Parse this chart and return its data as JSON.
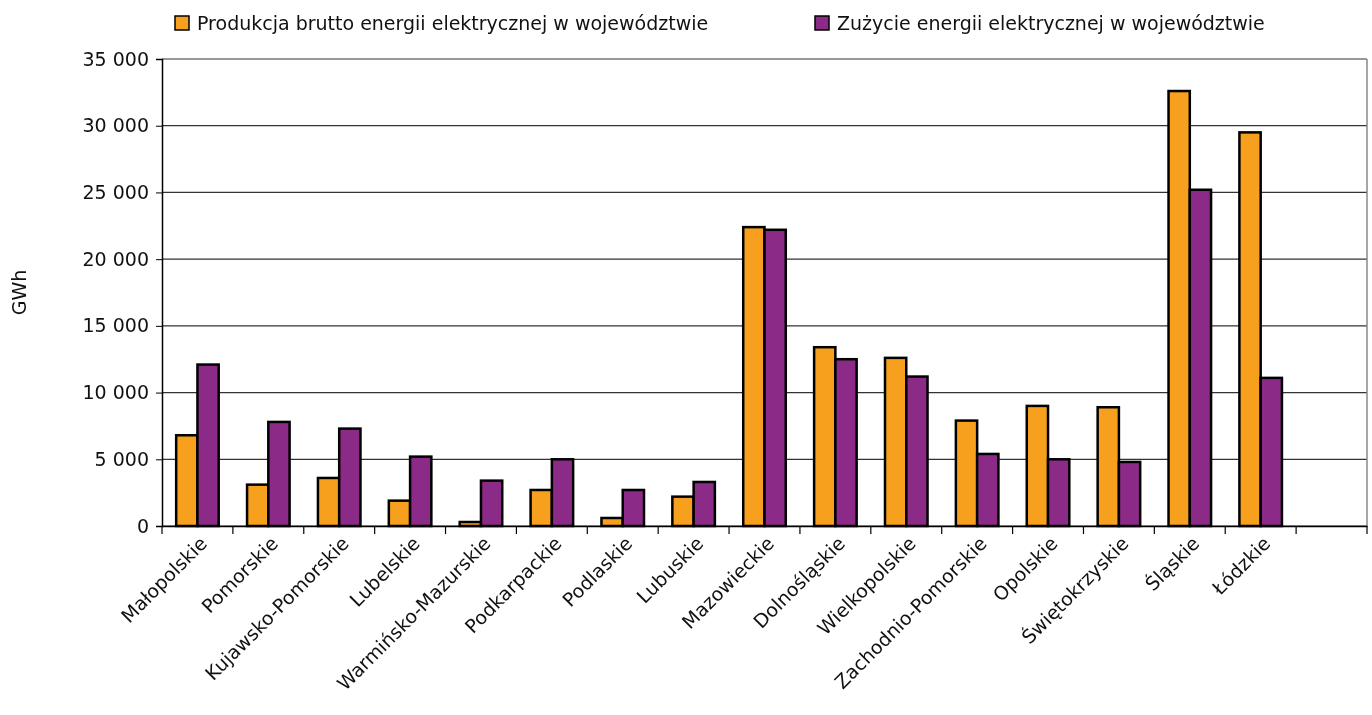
{
  "chart_data": {
    "type": "bar",
    "ylabel": "GWh",
    "categories": [
      "Małopolskie",
      "Pomorskie",
      "Kujawsko-Pomorskie",
      "Lubelskie",
      "Warmińsko-Mazurskie",
      "Podkarpackie",
      "Podlaskie",
      "Lubuskie",
      "Mazowieckie",
      "Dolnośląskie",
      "Wielkopolskie",
      "Zachodnio-Pomorskie",
      "Opolskie",
      "Świętokrzyskie",
      "Śląskie",
      "Łódzkie",
      null
    ],
    "series": [
      {
        "name": "Produkcja brutto energii elektrycznej w województwie",
        "color": "#f7a01e",
        "values": [
          6800,
          3100,
          3600,
          1900,
          300,
          2700,
          600,
          2200,
          22400,
          13400,
          12600,
          7900,
          9000,
          8900,
          32600,
          29500,
          null
        ]
      },
      {
        "name": "Zużycie energii elektrycznej w województwie",
        "color": "#8c2a87",
        "values": [
          12100,
          7800,
          7300,
          5200,
          3400,
          5000,
          2700,
          3300,
          22200,
          12500,
          11200,
          5400,
          5000,
          4800,
          25200,
          11100,
          null
        ]
      }
    ],
    "ylim": [
      0,
      35000
    ],
    "yticks": [
      0,
      {
        "value": 5000,
        "label": "5 000"
      },
      {
        "value": 10000,
        "label": "10 000"
      },
      {
        "value": 15000,
        "label": "15 000"
      },
      {
        "value": 20000,
        "label": "20 000"
      },
      {
        "value": 25000,
        "label": "25 000"
      },
      {
        "value": 30000,
        "label": "30 000"
      },
      {
        "value": 35000,
        "label": "35 000"
      }
    ],
    "grid": "y",
    "legend": "top"
  }
}
